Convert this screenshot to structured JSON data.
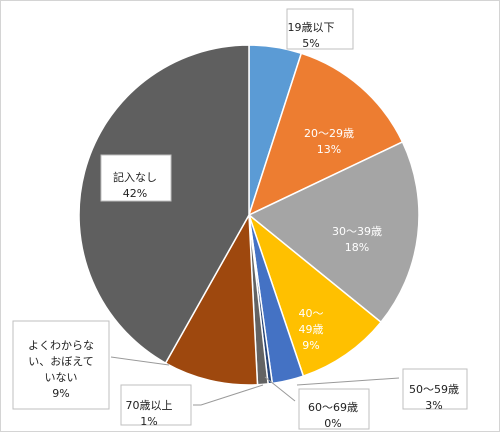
{
  "chart_data": {
    "type": "pie",
    "title": "",
    "start_angle_deg": 0,
    "direction": "clockwise",
    "slices": [
      {
        "label": "19歳以下",
        "value": 5,
        "value_label": "5%",
        "color": "#5b9bd5"
      },
      {
        "label": "20～29歳",
        "value": 13,
        "value_label": "13%",
        "color": "#ed7d31"
      },
      {
        "label": "30～39歳",
        "value": 18,
        "value_label": "18%",
        "color": "#a5a5a5"
      },
      {
        "label": "40～\n49歳",
        "value": 9,
        "value_label": "9%",
        "color": "#ffc000"
      },
      {
        "label": "50～59歳",
        "value": 3,
        "value_label": "3%",
        "color": "#4472c4"
      },
      {
        "label": "60～69歳",
        "value": 0.4,
        "value_label": "0%",
        "color": "#264478"
      },
      {
        "label": "70歳以上",
        "value": 1,
        "value_label": "1%",
        "color": "#636363"
      },
      {
        "label": "よくわからな\nい、おぼえて\nいない",
        "value": 9,
        "value_label": "9%",
        "color": "#9e480e"
      },
      {
        "label": "記入なし",
        "value": 42,
        "value_label": "42%",
        "color": "#5f5f5f"
      }
    ]
  }
}
